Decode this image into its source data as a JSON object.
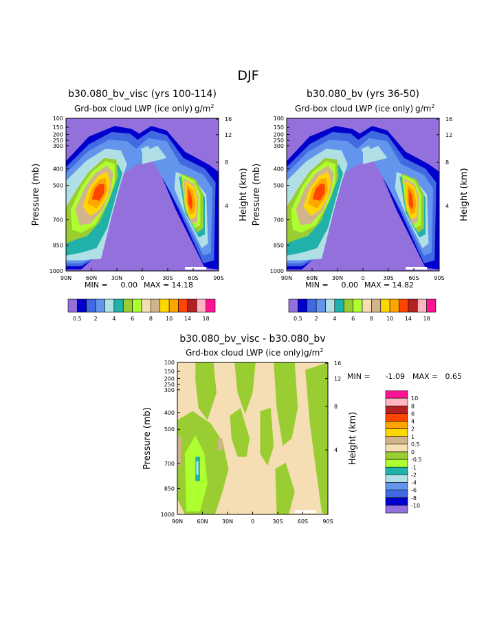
{
  "page_title": "DJF",
  "chart_data": [
    {
      "type": "heatmap",
      "title": "b30.080_bv_visc (yrs 100-114)",
      "subtitle_left": "Grd-box cloud LWP (ice only)",
      "units": "g/m",
      "units_sup": "2",
      "ylabel": "Pressure (mb)",
      "ylabel_right": "Height (km)",
      "x_ticks": [
        "90N",
        "60N",
        "30N",
        "0",
        "30S",
        "60S",
        "90S"
      ],
      "y_ticks": [
        "100",
        "150",
        "200",
        "250",
        "300",
        "400",
        "500",
        "700",
        "850",
        "1000"
      ],
      "y_ticks_right": [
        "16",
        "12",
        "8",
        "4"
      ],
      "min_label": "MIN =",
      "min": "0.00",
      "max_label": "MAX =",
      "max": "14.18",
      "colorbar_labels": [
        "0.5",
        "2",
        "4",
        "6",
        "8",
        "10",
        "14",
        "18"
      ]
    },
    {
      "type": "heatmap",
      "title": "b30.080_bv (yrs 36-50)",
      "subtitle_left": "Grd-box cloud LWP (ice only)",
      "units": "g/m",
      "units_sup": "2",
      "ylabel": "Pressure (mb)",
      "ylabel_right": "Height (km)",
      "x_ticks": [
        "90N",
        "60N",
        "30N",
        "0",
        "30S",
        "60S",
        "90S"
      ],
      "y_ticks": [
        "100",
        "150",
        "200",
        "250",
        "300",
        "400",
        "500",
        "700",
        "850",
        "1000"
      ],
      "y_ticks_right": [
        "16",
        "12",
        "8",
        "4"
      ],
      "min_label": "MIN =",
      "min": "0.00",
      "max_label": "MAX =",
      "max": "14.82",
      "colorbar_labels": [
        "0.5",
        "2",
        "4",
        "6",
        "8",
        "10",
        "14",
        "18"
      ]
    },
    {
      "type": "heatmap",
      "title": "b30.080_bv_visc - b30.080_bv",
      "subtitle_left": "Grd-box cloud LWP (ice only)",
      "units": "g/m",
      "units_sup": "2",
      "ylabel": "Pressure (mb)",
      "ylabel_right": "Height (km)",
      "x_ticks": [
        "90N",
        "60N",
        "30N",
        "0",
        "30S",
        "60S",
        "90S"
      ],
      "y_ticks": [
        "100",
        "150",
        "200",
        "250",
        "300",
        "400",
        "500",
        "700",
        "850",
        "1000"
      ],
      "y_ticks_right": [
        "16",
        "12",
        "8",
        "4"
      ],
      "min_label": "MIN =",
      "min": "-1.09",
      "max_label": "MAX =",
      "max": "0.65",
      "colorbar_labels": [
        "10",
        "8",
        "6",
        "4",
        "2",
        "1",
        "0.5",
        "0",
        "-0.5",
        "-1",
        "-2",
        "-4",
        "-6",
        "-8",
        "-10"
      ]
    }
  ],
  "colors": {
    "seq": [
      "#9370DB",
      "#0000CD",
      "#4169E1",
      "#6495ED",
      "#B0E0E6",
      "#20B2AA",
      "#9ACD32",
      "#ADFF2F",
      "#F5DEB3",
      "#D2B48C",
      "#FFD700",
      "#FFA500",
      "#FF4500",
      "#B22222",
      "#FFB6C1",
      "#FF1493"
    ],
    "diff": [
      "#FF1493",
      "#FFB6C1",
      "#B22222",
      "#FF4500",
      "#FFA500",
      "#FFD700",
      "#D2B48C",
      "#F5DEB3",
      "#9ACD32",
      "#ADFF2F",
      "#20B2AA",
      "#B0E0E6",
      "#6495ED",
      "#4169E1",
      "#0000CD",
      "#9370DB"
    ]
  }
}
